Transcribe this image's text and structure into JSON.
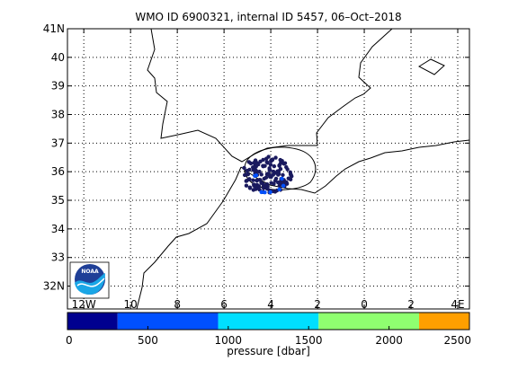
{
  "title": "WMO ID 6900321, internal ID 5457, 06–Oct–2018",
  "map": {
    "lat_range": [
      31.2,
      41
    ],
    "lon_range": [
      -12.7,
      4.5
    ],
    "lat_ticks": [
      {
        "value": 32,
        "label": "32N"
      },
      {
        "value": 33,
        "label": "33"
      },
      {
        "value": 34,
        "label": "34"
      },
      {
        "value": 35,
        "label": "35"
      },
      {
        "value": 36,
        "label": "36"
      },
      {
        "value": 37,
        "label": "37"
      },
      {
        "value": 38,
        "label": "38"
      },
      {
        "value": 39,
        "label": "39"
      },
      {
        "value": 40,
        "label": "40"
      },
      {
        "value": 41,
        "label": "41N"
      }
    ],
    "lon_ticks": [
      {
        "value": -12,
        "label": "12W"
      },
      {
        "value": -10,
        "label": "10"
      },
      {
        "value": -8,
        "label": "8"
      },
      {
        "value": -6,
        "label": "6"
      },
      {
        "value": -4,
        "label": "4"
      },
      {
        "value": -2,
        "label": "2"
      },
      {
        "value": 0,
        "label": "0"
      },
      {
        "value": 2,
        "label": "2"
      },
      {
        "value": 4,
        "label": "4E"
      }
    ],
    "grid": "dotted",
    "logo": "noaa-logo",
    "float_positions": {
      "marker_color": "#1a1a5e",
      "approx_center": {
        "lon": -4.2,
        "lat": 35.9
      },
      "approx_extent_deg": {
        "lon": 2.2,
        "lat": 1.3
      }
    }
  },
  "colorbar": {
    "label": "pressure [dbar]",
    "ticks": [
      "0",
      "500",
      "1000",
      "1500",
      "2000",
      "2500"
    ],
    "segments": [
      {
        "from": 0,
        "to": 312,
        "color": "#00008f"
      },
      {
        "from": 312,
        "to": 937,
        "color": "#0050ff"
      },
      {
        "from": 937,
        "to": 1562,
        "color": "#00dfff"
      },
      {
        "from": 1562,
        "to": 2187,
        "color": "#8fff70"
      },
      {
        "from": 2187,
        "to": 2500,
        "color": "#ff9f00"
      }
    ]
  }
}
